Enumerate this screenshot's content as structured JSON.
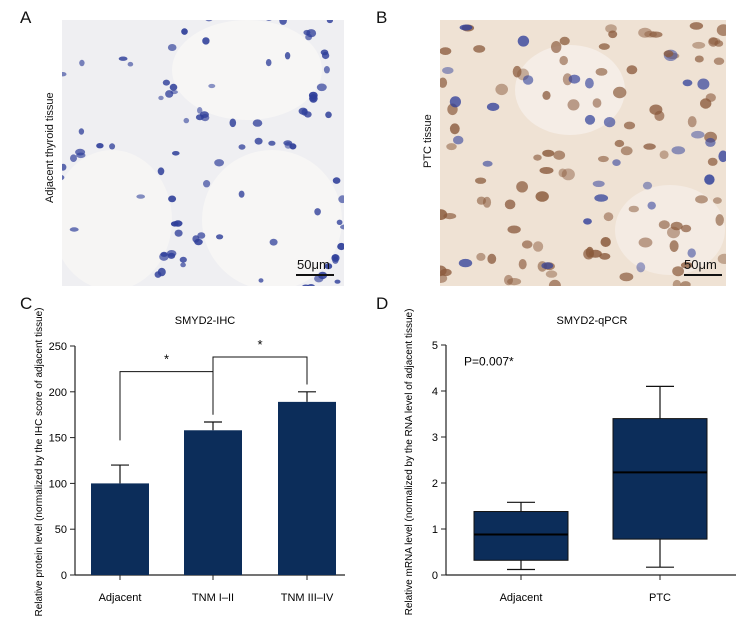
{
  "panels": {
    "A": {
      "letter": "A",
      "side_label": "Adjacent thyroid tissue",
      "scale_bar": "50μm"
    },
    "B": {
      "letter": "B",
      "side_label": "PTC tissue",
      "scale_bar": "50μm"
    },
    "C": {
      "letter": "C"
    },
    "D": {
      "letter": "D"
    }
  },
  "colors": {
    "bar_fill": "#0c2d5a",
    "axis": "#222222",
    "stain_blue": "#2f3f9a",
    "stain_brown": "#8a5a3c"
  },
  "chart_data": [
    {
      "type": "bar",
      "title": "SMYD2-IHC",
      "ylabel": "Relative protein level (normalized by the IHC score of adjacent tissue)",
      "xlabel": "",
      "categories": [
        "Adjacent",
        "TNM I–II",
        "TNM III–IV"
      ],
      "values": [
        100,
        158,
        189
      ],
      "error_upper": [
        120,
        167,
        200
      ],
      "ylim": [
        0,
        250
      ],
      "yticks": [
        "0",
        "50",
        "100",
        "150",
        "200",
        "250"
      ],
      "significance": [
        {
          "from": "Adjacent",
          "to": "TNM I–II",
          "label": "*"
        },
        {
          "from": "TNM I–II",
          "to": "TNM III–IV",
          "label": "*"
        }
      ],
      "grid": false
    },
    {
      "type": "boxplot",
      "title": "SMYD2-qPCR",
      "ylabel": "Relative mRNA level (normalized by the RNA level of adjacent tissue)",
      "xlabel": "",
      "categories": [
        "Adjacent",
        "PTC"
      ],
      "boxes": [
        {
          "min": 0.12,
          "q1": 0.32,
          "median": 0.88,
          "q3": 1.38,
          "max": 1.58
        },
        {
          "min": 0.17,
          "q1": 0.78,
          "median": 2.23,
          "q3": 3.4,
          "max": 4.1
        }
      ],
      "ylim": [
        0,
        5
      ],
      "yticks": [
        "0",
        "1",
        "2",
        "3",
        "4",
        "5"
      ],
      "annotation": "P=0.007*",
      "grid": false
    }
  ]
}
